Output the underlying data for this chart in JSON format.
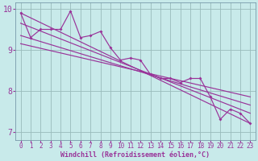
{
  "xlabel": "Windchill (Refroidissement éolien,°C)",
  "xlim": [
    -0.5,
    23.5
  ],
  "ylim": [
    6.8,
    10.15
  ],
  "yticks": [
    7,
    8,
    9,
    10
  ],
  "xticks": [
    0,
    1,
    2,
    3,
    4,
    5,
    6,
    7,
    8,
    9,
    10,
    11,
    12,
    13,
    14,
    15,
    16,
    17,
    18,
    19,
    20,
    21,
    22,
    23
  ],
  "bg_color": "#c8eaea",
  "line_color": "#993399",
  "grid_color": "#99bbbb",
  "data_line_x": [
    0,
    1,
    2,
    3,
    4,
    5,
    6,
    7,
    8,
    9,
    10,
    11,
    12,
    13,
    14,
    15,
    16,
    17,
    18,
    19,
    20,
    21,
    22,
    23
  ],
  "data_line_y": [
    9.9,
    9.3,
    9.5,
    9.5,
    9.5,
    9.95,
    9.3,
    9.35,
    9.45,
    9.05,
    8.75,
    8.8,
    8.75,
    8.4,
    8.3,
    8.3,
    8.2,
    8.3,
    8.3,
    7.85,
    7.3,
    7.55,
    7.45,
    7.2
  ],
  "trend_lines": [
    {
      "x0": 0,
      "y0": 9.9,
      "x1": 23,
      "y1": 7.2
    },
    {
      "x0": 0,
      "y0": 9.65,
      "x1": 23,
      "y1": 7.45
    },
    {
      "x0": 0,
      "y0": 9.35,
      "x1": 23,
      "y1": 7.65
    },
    {
      "x0": 0,
      "y0": 9.15,
      "x1": 23,
      "y1": 7.85
    }
  ],
  "xlabel_fontsize": 6,
  "tick_fontsize_x": 5.5,
  "tick_fontsize_y": 7
}
